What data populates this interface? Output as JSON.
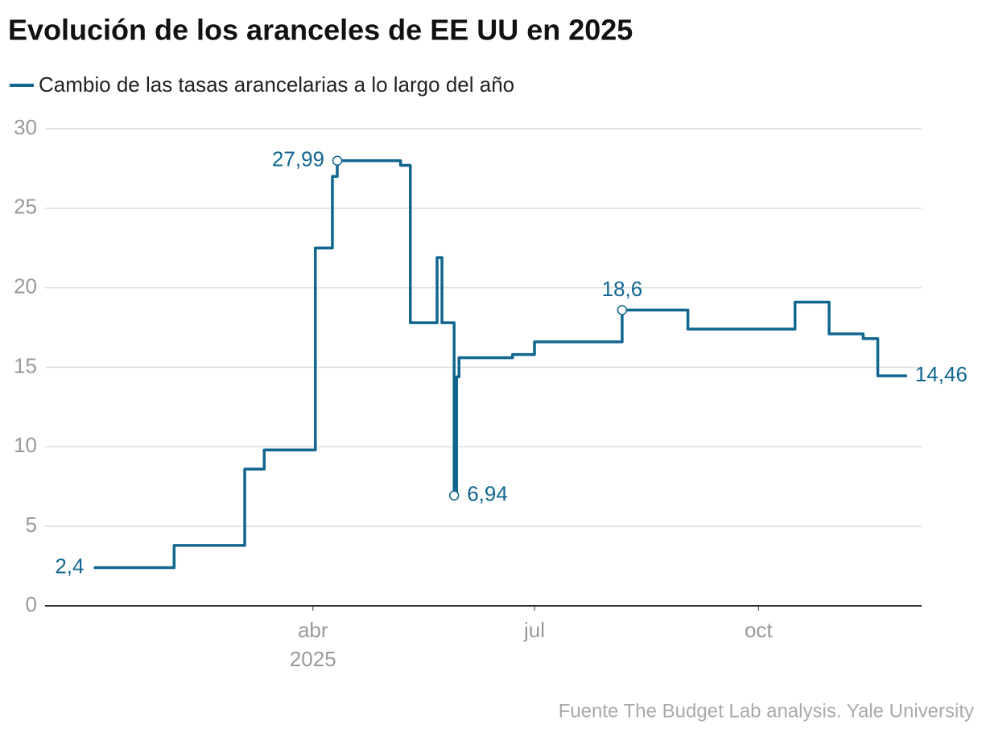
{
  "chart_data": {
    "type": "step-line",
    "title": "Evolución de los aranceles de EE UU en 2025",
    "source": "Fuente The Budget Lab analysis. Yale University",
    "x": [
      "2025-01-01",
      "2025-02-03",
      "2025-03-04",
      "2025-03-12",
      "2025-04-02",
      "2025-04-09",
      "2025-04-11",
      "2025-05-07",
      "2025-05-11",
      "2025-05-22",
      "2025-05-24",
      "2025-05-29",
      "2025-05-30",
      "2025-05-31",
      "2025-06-22",
      "2025-07-01",
      "2025-08-06",
      "2025-09-02",
      "2025-10-16",
      "2025-10-30",
      "2025-11-13",
      "2025-11-19",
      "2025-12-01"
    ],
    "series": [
      {
        "name": "Cambio de las tasas arancelarias a lo largo del año",
        "color": "#10668f",
        "values": [
          2.4,
          3.8,
          8.6,
          9.8,
          22.5,
          27.0,
          27.99,
          27.7,
          17.8,
          21.9,
          17.8,
          6.94,
          14.4,
          15.6,
          15.8,
          16.6,
          18.6,
          17.4,
          19.1,
          17.1,
          16.8,
          14.46,
          14.46
        ],
        "value_labels": [
          "2,4",
          null,
          null,
          null,
          null,
          null,
          "27,99",
          null,
          null,
          null,
          null,
          "6,94",
          null,
          null,
          null,
          null,
          "18,6",
          null,
          null,
          null,
          null,
          null,
          "14,46"
        ]
      }
    ],
    "xlim": [
      "2024-12-12",
      "2025-12-07"
    ],
    "xticks": [
      {
        "value": "2025-04-01",
        "label": "abr"
      },
      {
        "value": "2025-07-01",
        "label": "jul"
      },
      {
        "value": "2025-10-01",
        "label": "oct"
      }
    ],
    "year_label": "2025",
    "ylim": [
      0,
      30
    ],
    "yticks": [
      0,
      5,
      10,
      15,
      20,
      25,
      30
    ],
    "grid": true
  }
}
